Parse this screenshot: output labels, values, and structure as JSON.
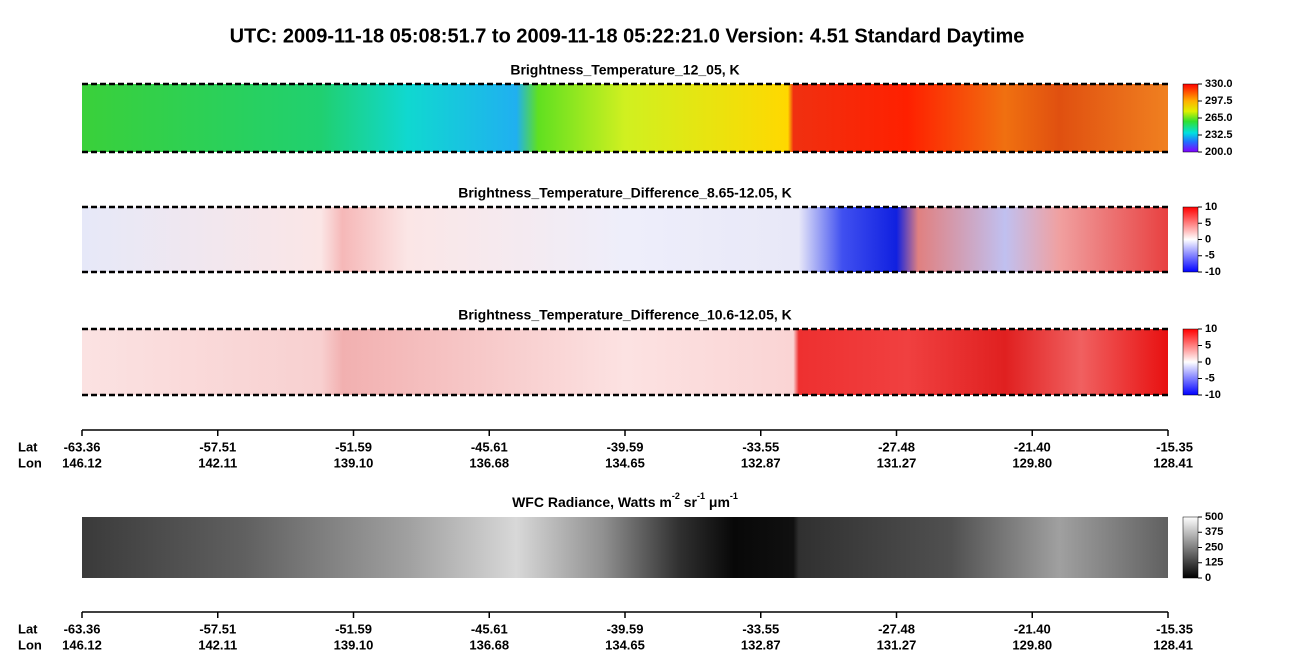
{
  "header": {
    "title": "UTC:  2009-11-18   05:08:51.7  to  2009-11-18   05:22:21.0    Version: 4.51  Standard Daytime"
  },
  "panels": [
    {
      "title": "Brightness_Temperature_12_05, K",
      "colorbar_ticks": [
        "330.0",
        "297.5",
        "265.0",
        "232.5",
        "200.0"
      ]
    },
    {
      "title": "Brightness_Temperature_Difference_8.65-12.05, K",
      "colorbar_ticks": [
        "10",
        "5",
        "0",
        "-5",
        "-10"
      ]
    },
    {
      "title": "Brightness_Temperature_Difference_10.6-12.05, K",
      "colorbar_ticks": [
        "10",
        "5",
        "0",
        "-5",
        "-10"
      ]
    },
    {
      "title_parts": [
        "WFC Radiance, Watts m",
        "-2",
        " sr",
        "-1",
        " μm",
        "-1"
      ],
      "colorbar_ticks": [
        "500",
        "375",
        "250",
        "125",
        "0"
      ]
    }
  ],
  "axes": [
    {
      "lat_label": "Lat",
      "lon_label": "Lon",
      "lat": [
        "-63.36",
        "-57.51",
        "-51.59",
        "-45.61",
        "-39.59",
        "-33.55",
        "-27.48",
        "-21.40",
        "-15.35"
      ],
      "lon": [
        "146.12",
        "142.11",
        "139.10",
        "136.68",
        "134.65",
        "132.87",
        "131.27",
        "129.80",
        "128.41"
      ]
    },
    {
      "lat_label": "Lat",
      "lon_label": "Lon",
      "lat": [
        "-63.36",
        "-57.51",
        "-51.59",
        "-45.61",
        "-39.59",
        "-33.55",
        "-27.48",
        "-21.40",
        "-15.35"
      ],
      "lon": [
        "146.12",
        "142.11",
        "139.10",
        "136.68",
        "134.65",
        "132.87",
        "131.27",
        "129.80",
        "128.41"
      ]
    }
  ]
}
